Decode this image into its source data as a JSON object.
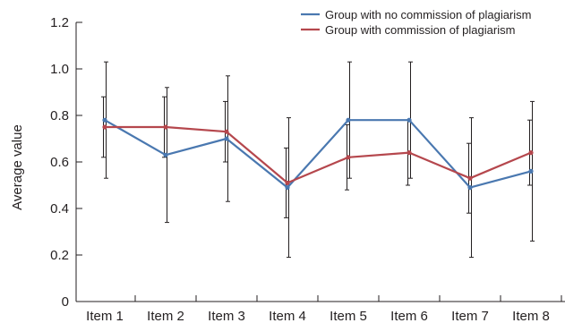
{
  "chart_data": {
    "type": "line",
    "title": "",
    "xlabel": "",
    "ylabel": "Average value",
    "ylim": [
      0,
      1.2
    ],
    "yticks": [
      "0",
      "0.2",
      "0.4",
      "0.6",
      "0.8",
      "1.0",
      "1.2"
    ],
    "categories": [
      "Item 1",
      "Item 2",
      "Item 3",
      "Item 4",
      "Item 5",
      "Item 6",
      "Item 7",
      "Item 8"
    ],
    "grid": false,
    "legend": "top-right",
    "series": [
      {
        "name": "Group with no commission of plagiarism",
        "color": "#4a78b0",
        "values": [
          0.78,
          0.63,
          0.7,
          0.49,
          0.78,
          0.78,
          0.49,
          0.56
        ],
        "error": [
          [
            0.53,
            1.03
          ],
          [
            0.34,
            0.92
          ],
          [
            0.43,
            0.97
          ],
          [
            0.19,
            0.79
          ],
          [
            0.53,
            1.03
          ],
          [
            0.53,
            1.03
          ],
          [
            0.19,
            0.79
          ],
          [
            0.26,
            0.86
          ]
        ]
      },
      {
        "name": "Group with commission of plagiarism",
        "color": "#b5474d",
        "values": [
          0.75,
          0.75,
          0.73,
          0.51,
          0.62,
          0.64,
          0.53,
          0.64
        ],
        "error": [
          [
            0.62,
            0.88
          ],
          [
            0.62,
            0.88
          ],
          [
            0.6,
            0.86
          ],
          [
            0.36,
            0.66
          ],
          [
            0.48,
            0.76
          ],
          [
            0.5,
            0.78
          ],
          [
            0.38,
            0.68
          ],
          [
            0.5,
            0.78
          ]
        ]
      }
    ]
  }
}
